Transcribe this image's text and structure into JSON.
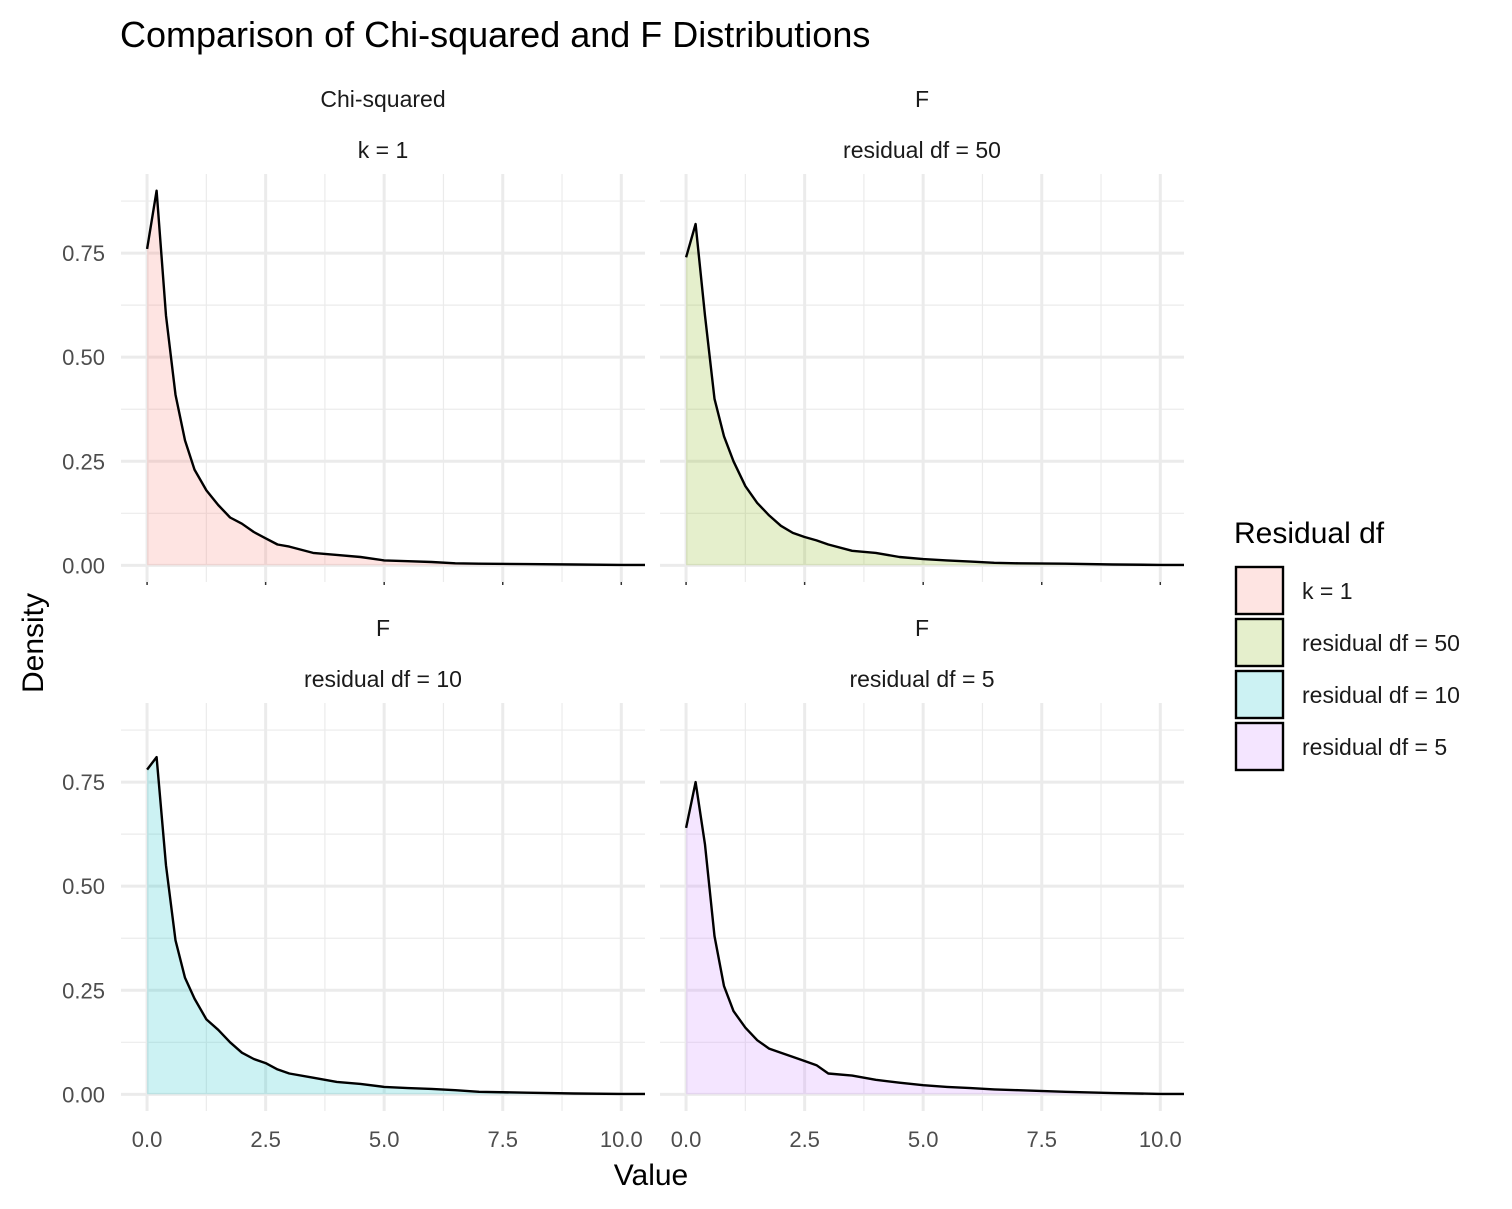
{
  "chart_data": {
    "type": "area",
    "title": "Comparison of Chi-squared and F Distributions",
    "xlabel": "Value",
    "ylabel": "Density",
    "xlim": [
      -0.55,
      10.5
    ],
    "ylim": [
      -0.04,
      0.94
    ],
    "x_ticks": [
      0,
      2.5,
      5,
      7.5,
      10
    ],
    "x_tick_labels": [
      "0.0",
      "2.5",
      "5.0",
      "7.5",
      "10.0"
    ],
    "y_ticks": [
      0,
      0.25,
      0.5,
      0.75
    ],
    "y_tick_labels": [
      "0.00",
      "0.25",
      "0.50",
      "0.75"
    ],
    "grid": true,
    "legend": {
      "title": "Residual df",
      "position": "right",
      "entries": [
        {
          "label": "k = 1",
          "color": "#F8766D"
        },
        {
          "label": "residual df = 50",
          "color": "#7CAE00"
        },
        {
          "label": "residual df = 10",
          "color": "#00BFC4"
        },
        {
          "label": "residual df = 5",
          "color": "#C77CFF"
        }
      ]
    },
    "panels": [
      {
        "strip_top": "Chi-squared",
        "strip_bottom": "k = 1",
        "fill": "#F8766D",
        "x": [
          0,
          0.2,
          0.4,
          0.6,
          0.8,
          1.0,
          1.25,
          1.5,
          1.75,
          2.0,
          2.25,
          2.5,
          2.75,
          3.0,
          3.5,
          4.0,
          4.5,
          5.0,
          5.5,
          6.0,
          6.5,
          7.0,
          8.0,
          9.0,
          10.0
        ],
        "y": [
          0.76,
          0.9,
          0.6,
          0.41,
          0.3,
          0.23,
          0.18,
          0.145,
          0.115,
          0.1,
          0.08,
          0.065,
          0.05,
          0.045,
          0.03,
          0.025,
          0.02,
          0.012,
          0.01,
          0.008,
          0.005,
          0.004,
          0.003,
          0.002,
          0.001
        ]
      },
      {
        "strip_top": "F",
        "strip_bottom": "residual df = 50",
        "fill": "#7CAE00",
        "x": [
          0,
          0.2,
          0.4,
          0.6,
          0.8,
          1.0,
          1.25,
          1.5,
          1.75,
          2.0,
          2.25,
          2.5,
          2.75,
          3.0,
          3.5,
          4.0,
          4.5,
          5.0,
          5.5,
          6.0,
          6.5,
          7.0,
          8.0,
          9.0,
          10.0
        ],
        "y": [
          0.74,
          0.82,
          0.6,
          0.4,
          0.31,
          0.25,
          0.19,
          0.15,
          0.12,
          0.095,
          0.078,
          0.068,
          0.06,
          0.05,
          0.035,
          0.03,
          0.02,
          0.015,
          0.012,
          0.009,
          0.006,
          0.005,
          0.004,
          0.002,
          0.001
        ]
      },
      {
        "strip_top": "F",
        "strip_bottom": "residual df = 10",
        "fill": "#00BFC4",
        "x": [
          0,
          0.2,
          0.4,
          0.6,
          0.8,
          1.0,
          1.25,
          1.5,
          1.75,
          2.0,
          2.25,
          2.5,
          2.75,
          3.0,
          3.5,
          4.0,
          4.5,
          5.0,
          5.5,
          6.0,
          6.5,
          7.0,
          8.0,
          9.0,
          10.0
        ],
        "y": [
          0.78,
          0.81,
          0.55,
          0.37,
          0.28,
          0.23,
          0.18,
          0.155,
          0.125,
          0.1,
          0.085,
          0.075,
          0.06,
          0.05,
          0.04,
          0.03,
          0.025,
          0.018,
          0.015,
          0.013,
          0.01,
          0.006,
          0.004,
          0.002,
          0.001
        ]
      },
      {
        "strip_top": "F",
        "strip_bottom": "residual df = 5",
        "fill": "#C77CFF",
        "x": [
          0,
          0.2,
          0.4,
          0.6,
          0.8,
          1.0,
          1.25,
          1.5,
          1.75,
          2.0,
          2.25,
          2.5,
          2.75,
          3.0,
          3.5,
          4.0,
          4.5,
          5.0,
          5.5,
          6.0,
          6.5,
          7.0,
          8.0,
          9.0,
          10.0
        ],
        "y": [
          0.64,
          0.75,
          0.6,
          0.38,
          0.26,
          0.2,
          0.16,
          0.13,
          0.11,
          0.1,
          0.09,
          0.08,
          0.07,
          0.05,
          0.045,
          0.035,
          0.028,
          0.022,
          0.018,
          0.015,
          0.012,
          0.01,
          0.006,
          0.003,
          0.001
        ]
      }
    ]
  }
}
